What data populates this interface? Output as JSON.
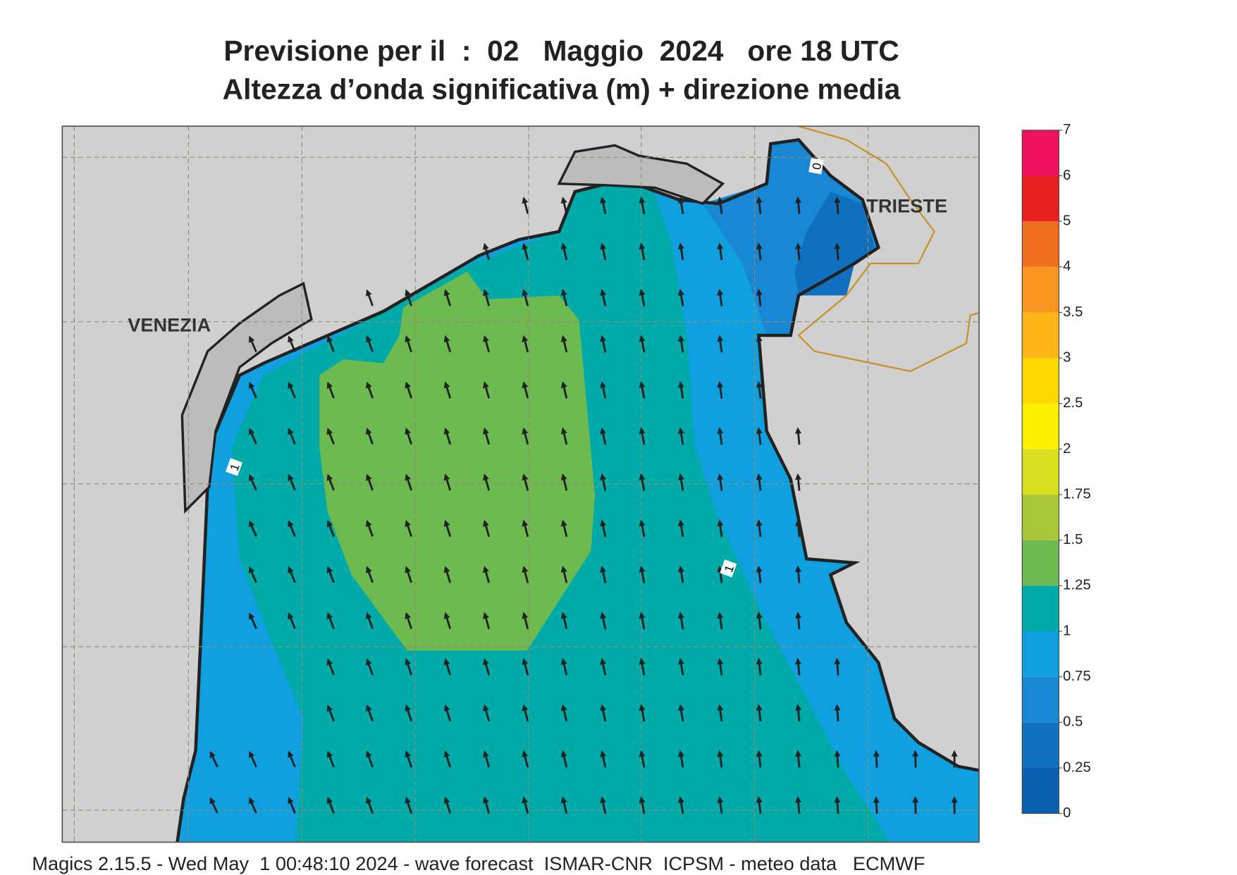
{
  "header": {
    "title_line1": "Previsione per il  :  02   Maggio  2024   ore 18 UTC",
    "title_line2": "Altezza d’onda significativa (m) + direzione media"
  },
  "map": {
    "place_labels": [
      "VENEZIA",
      "TRIESTE"
    ],
    "contour_labels": [
      "1",
      "1",
      "0"
    ]
  },
  "legend": {
    "levels": [
      0,
      0.25,
      0.5,
      0.75,
      1,
      1.25,
      1.5,
      1.75,
      2,
      2.5,
      3,
      3.5,
      4,
      5,
      6,
      7
    ],
    "colors": [
      "#0a5fb0",
      "#1070c0",
      "#1888d4",
      "#10a0e0",
      "#00aaa8",
      "#6cba50",
      "#a8c838",
      "#d8e020",
      "#fff200",
      "#ffd800",
      "#ffb418",
      "#f89420",
      "#f07020",
      "#e82020",
      "#f01060"
    ]
  },
  "footer": "Magics 2.15.5 - Wed May  1 00:48:10 2024 - wave forecast  ISMAR-CNR  ICPSM - meteo data   ECMWF"
}
